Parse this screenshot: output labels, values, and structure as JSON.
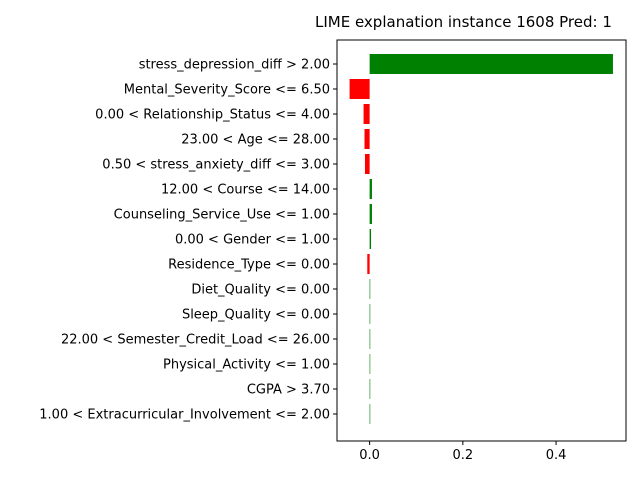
{
  "chart_data": {
    "type": "bar",
    "orientation": "horizontal",
    "title": "LIME explanation instance 1608 Pred: 1",
    "categories": [
      "stress_depression_diff > 2.00",
      "Mental_Severity_Score <= 6.50",
      "0.00 < Relationship_Status <= 4.00",
      "23.00 < Age <= 28.00",
      "0.50 < stress_anxiety_diff <= 3.00",
      "12.00 < Course <= 14.00",
      "Counseling_Service_Use <= 1.00",
      "0.00 < Gender <= 1.00",
      "Residence_Type <= 0.00",
      "Diet_Quality <= 0.00",
      "Sleep_Quality <= 0.00",
      "22.00 < Semester_Credit_Load <= 26.00",
      "Physical_Activity <= 1.00",
      "CGPA > 3.70",
      "1.00 < Extracurricular_Involvement <= 2.00"
    ],
    "values": [
      0.522,
      -0.043,
      -0.013,
      -0.011,
      -0.01,
      0.005,
      0.005,
      0.003,
      -0.005,
      0.001,
      0.001,
      0.001,
      0.0,
      0.0,
      0.0
    ],
    "xlim": [
      -0.07,
      0.55
    ],
    "xticks": [
      0.0,
      0.2,
      0.4
    ],
    "xtick_labels": [
      "0.0",
      "0.2",
      "0.4"
    ],
    "xlabel": "",
    "ylabel": "",
    "grid": false,
    "colors": {
      "positive": "#008000",
      "negative": "#ff0000",
      "axis": "#000000"
    }
  }
}
